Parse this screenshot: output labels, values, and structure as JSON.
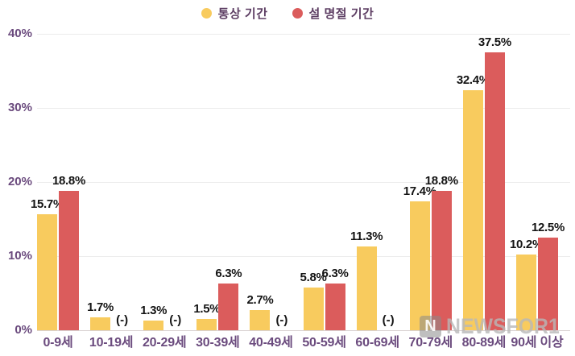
{
  "chart_data": {
    "type": "bar",
    "title": "",
    "categories": [
      "0-9세",
      "10-19세",
      "20-29세",
      "30-39세",
      "40-49세",
      "50-59세",
      "60-69세",
      "70-79세",
      "80-89세",
      "90세 이상"
    ],
    "series": [
      {
        "name": "통상 기간",
        "color": "#F8CB5E",
        "values": [
          15.7,
          1.7,
          1.3,
          1.5,
          2.7,
          5.8,
          11.3,
          17.4,
          32.4,
          10.2
        ]
      },
      {
        "name": "설 명절 기간",
        "color": "#DB5C5C",
        "values": [
          18.8,
          null,
          null,
          6.3,
          null,
          6.3,
          null,
          18.8,
          37.5,
          12.5
        ]
      }
    ],
    "value_suffix": "%",
    "null_label": "(-)",
    "y_ticks": [
      "0%",
      "10%",
      "20%",
      "30%",
      "40%"
    ],
    "ylim": [
      0,
      40
    ],
    "grid": true,
    "legend_position": "top"
  },
  "watermark": {
    "logo_letter": "N",
    "text": "NEWSFOR1"
  },
  "colors": {
    "series_normal": "#F8CB5E",
    "series_holiday": "#DB5C5C",
    "axis_label": "#6b4b7e",
    "legend_text": "#5d3e63",
    "value_label": "#141414",
    "gridline": "#ececec",
    "baseline": "#d9d2d2",
    "background": "#ffffff"
  }
}
